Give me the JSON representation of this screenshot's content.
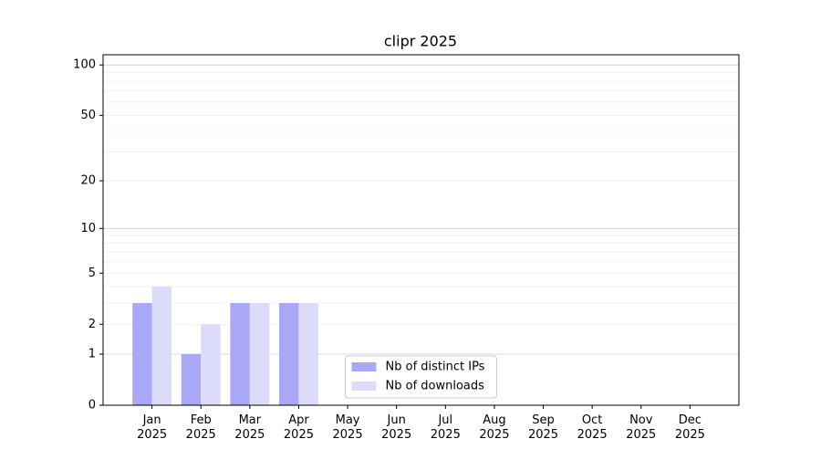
{
  "chart_data": {
    "type": "bar",
    "title": "clipr 2025",
    "categories": [
      "Jan 2025",
      "Feb 2025",
      "Mar 2025",
      "Apr 2025",
      "May 2025",
      "Jun 2025",
      "Jul 2025",
      "Aug 2025",
      "Sep 2025",
      "Oct 2025",
      "Nov 2025",
      "Dec 2025"
    ],
    "series": [
      {
        "name": "Nb of distinct IPs",
        "color": "#a8a8f6",
        "values": [
          3,
          1,
          3,
          3,
          0,
          0,
          0,
          0,
          0,
          0,
          0,
          0
        ]
      },
      {
        "name": "Nb of downloads",
        "color": "#dcdcfa",
        "values": [
          4,
          2,
          3,
          3,
          0,
          0,
          0,
          0,
          0,
          0,
          0,
          0
        ]
      }
    ],
    "yscale": "log1p",
    "ylim": [
      0,
      115
    ],
    "yticks": [
      0,
      1,
      2,
      5,
      10,
      20,
      50,
      100
    ],
    "minor_yticks": [
      3,
      4,
      6,
      7,
      8,
      9,
      30,
      40,
      60,
      70,
      80,
      90
    ],
    "grid": true,
    "legend": "lower center"
  }
}
